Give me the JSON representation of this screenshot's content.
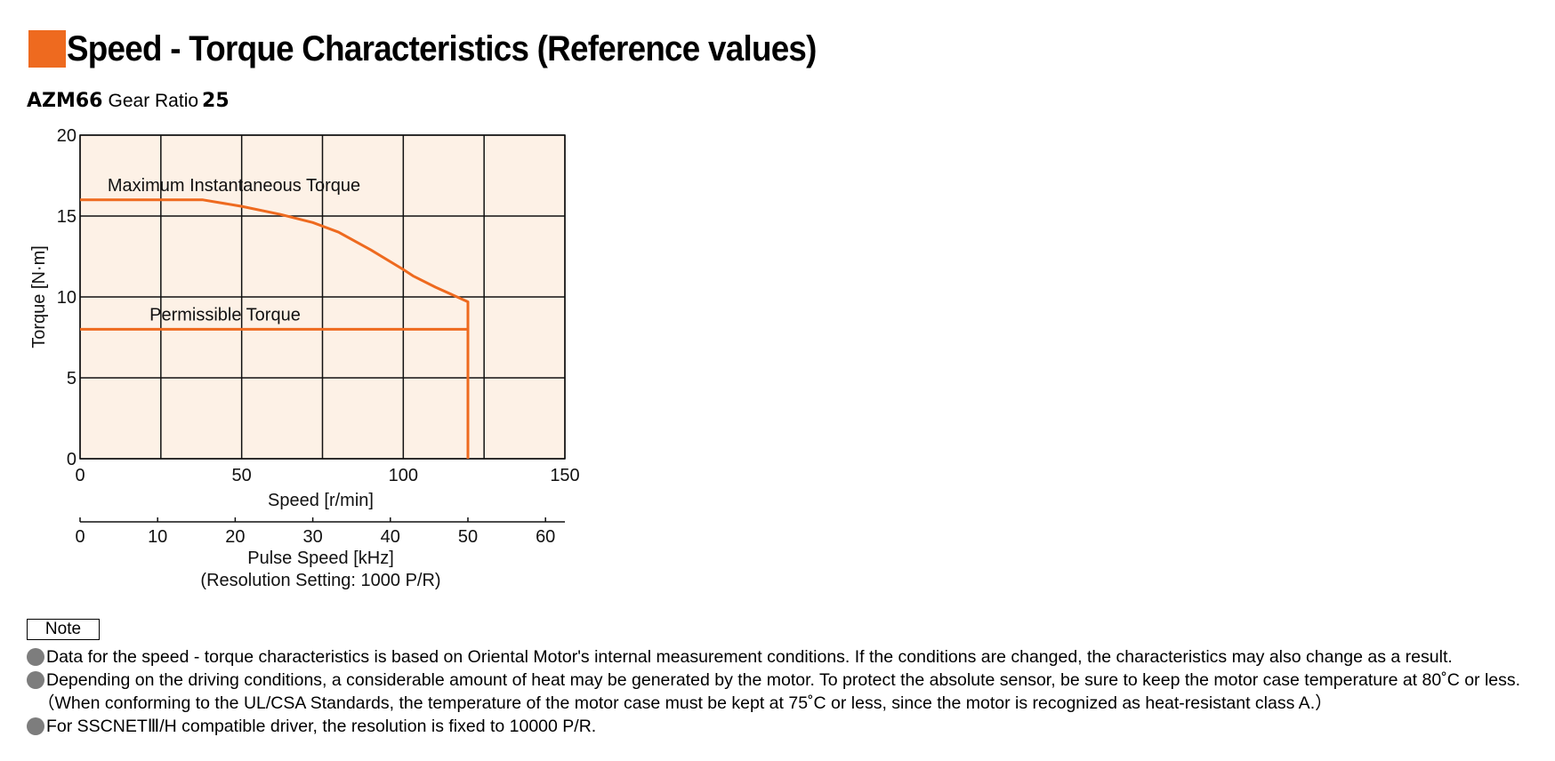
{
  "header": {
    "title": "Speed - Torque Characteristics (Reference values)",
    "accent_color": "#ee6a1f"
  },
  "subtitle": {
    "model": "AZM66",
    "gear_ratio_label": "Gear Ratio",
    "gear_ratio_value": "25"
  },
  "chart_data": {
    "type": "line",
    "xlabel": "Speed [r/min]",
    "ylabel": "Torque [N·m]",
    "xlim": [
      0,
      150
    ],
    "ylim": [
      0,
      20
    ],
    "x_ticks": [
      0,
      50,
      100,
      150
    ],
    "y_ticks": [
      0,
      5,
      10,
      15,
      20
    ],
    "grid_x": [
      0,
      25,
      50,
      75,
      100,
      125,
      150
    ],
    "grid_y": [
      0,
      5,
      10,
      15,
      20
    ],
    "grid": true,
    "background_color": "#fdf1e6",
    "line_color": "#ee6a1f",
    "series": [
      {
        "name": "Maximum Instantaneous Torque",
        "x": [
          0,
          38,
          50,
          62,
          72,
          80,
          90,
          100,
          103,
          110,
          120,
          120,
          120
        ],
        "y": [
          16,
          16,
          15.6,
          15.1,
          14.6,
          14.0,
          12.9,
          11.7,
          11.3,
          10.6,
          9.7,
          5,
          0
        ]
      },
      {
        "name": "Permissible Torque",
        "x": [
          0,
          120,
          120
        ],
        "y": [
          8,
          8,
          0
        ]
      }
    ],
    "secondary_axis": {
      "label": "Pulse Speed [kHz]",
      "note": "(Resolution Setting: 1000 P/R)",
      "ticks": [
        0,
        10,
        20,
        30,
        40,
        50,
        60
      ],
      "range": [
        0,
        62.5
      ]
    }
  },
  "notes": {
    "heading": "Note",
    "items": [
      "Data for the speed - torque characteristics is based on Oriental Motor's internal measurement conditions. If the conditions are changed, the characteristics may also change as a result.",
      "Depending on the driving conditions, a considerable amount of heat may be generated by the motor.  To protect the absolute sensor, be sure to keep the motor case temperature at 80˚C or less.",
      "（When conforming to the UL/CSA Standards, the temperature of the motor case must be kept at 75˚C or less, since the motor is recognized as heat-resistant class A.）",
      "For SSCNETⅢ/H compatible driver, the resolution is fixed to 10000 P/R."
    ],
    "bullet_color": "#7d7d7d"
  }
}
